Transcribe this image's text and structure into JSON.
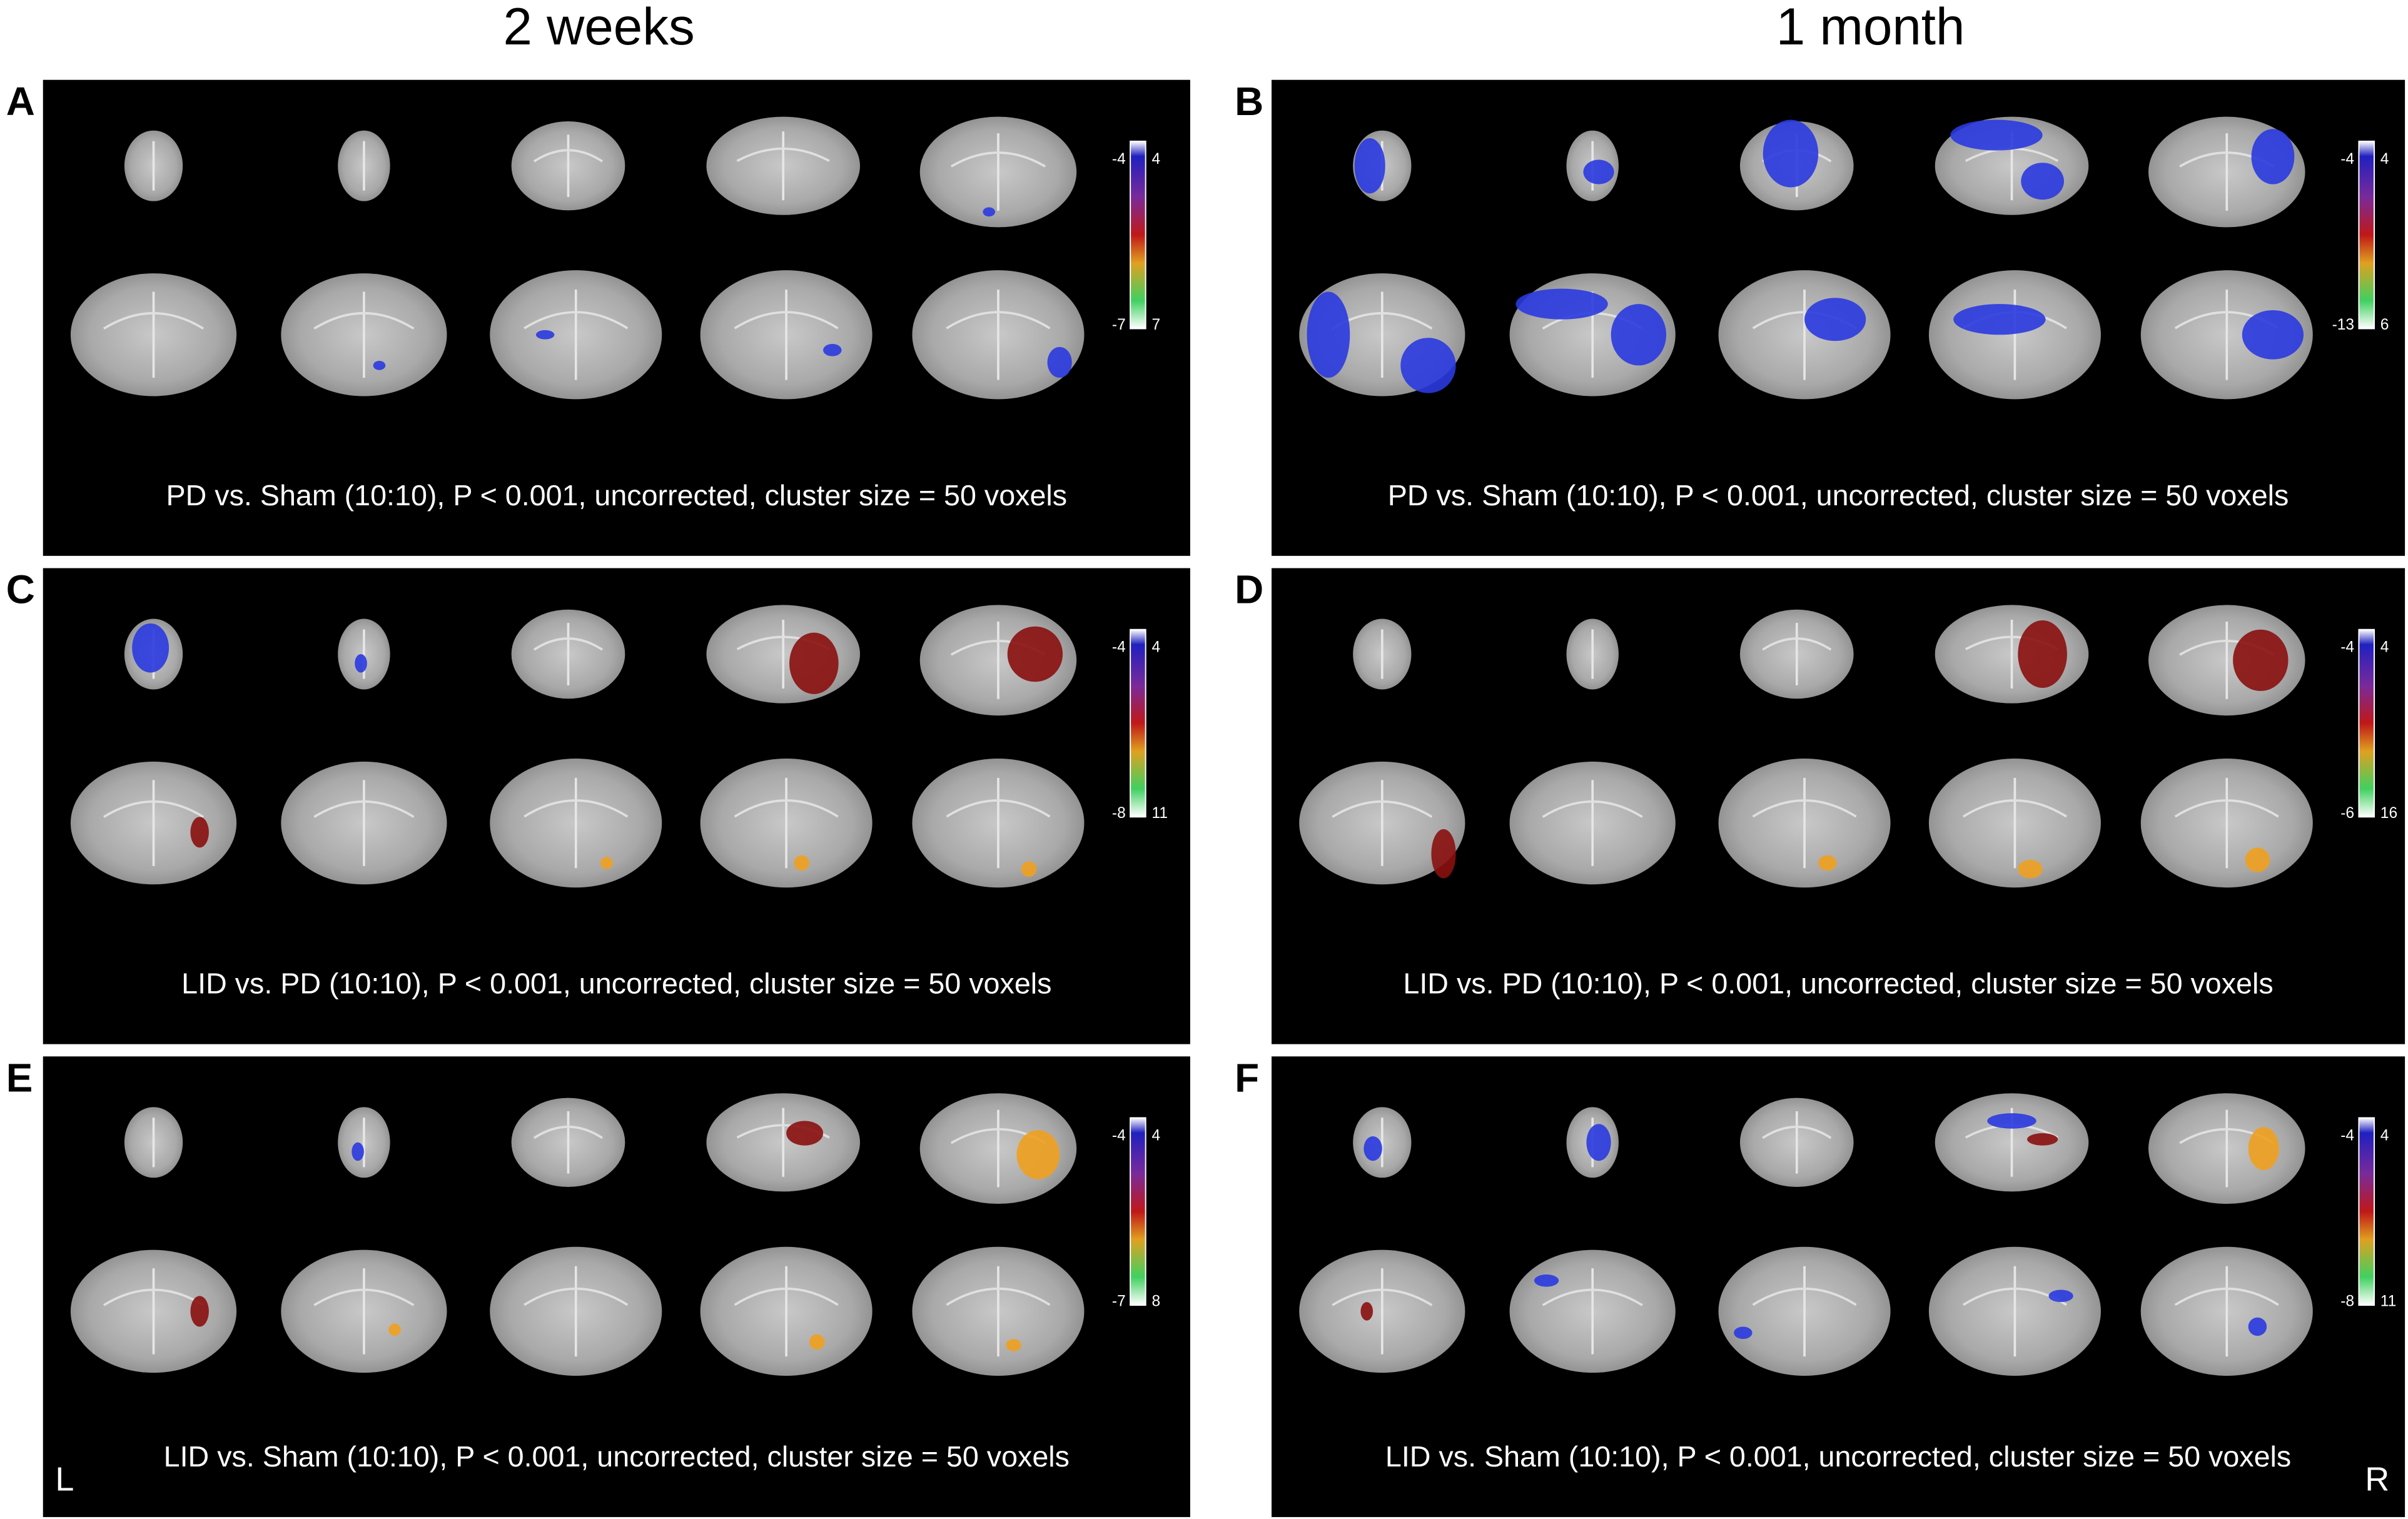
{
  "headers": {
    "left": "2 weeks",
    "right": "1 month"
  },
  "panels": [
    {
      "letter": "A",
      "caption": "PD vs. Sham (10:10), P < 0.001, uncorrected, cluster size = 50 voxels",
      "colorbar": {
        "neg_top": "-4",
        "neg_bottom": "-7",
        "pos_top": "4",
        "pos_bottom": "7"
      }
    },
    {
      "letter": "B",
      "caption": "PD vs. Sham (10:10), P < 0.001, uncorrected, cluster size = 50 voxels",
      "colorbar": {
        "neg_top": "-4",
        "neg_bottom": "-13",
        "pos_top": "4",
        "pos_bottom": "6"
      }
    },
    {
      "letter": "C",
      "caption": "LID vs. PD (10:10), P < 0.001, uncorrected, cluster size = 50 voxels",
      "colorbar": {
        "neg_top": "-4",
        "neg_bottom": "-8",
        "pos_top": "4",
        "pos_bottom": "11"
      }
    },
    {
      "letter": "D",
      "caption": "LID vs. PD (10:10), P < 0.001, uncorrected, cluster size = 50 voxels",
      "colorbar": {
        "neg_top": "-4",
        "neg_bottom": "-6",
        "pos_top": "4",
        "pos_bottom": "16"
      }
    },
    {
      "letter": "E",
      "caption": "LID vs. Sham (10:10), P < 0.001, uncorrected, cluster size = 50 voxels",
      "colorbar": {
        "neg_top": "-4",
        "neg_bottom": "-7",
        "pos_top": "4",
        "pos_bottom": "8"
      }
    },
    {
      "letter": "F",
      "caption": "LID vs. Sham (10:10), P < 0.001, uncorrected, cluster size = 50 voxels",
      "colorbar": {
        "neg_top": "-4",
        "neg_bottom": "-8",
        "pos_top": "4",
        "pos_bottom": "11"
      }
    }
  ],
  "orientation": {
    "left": "L",
    "right": "R"
  }
}
